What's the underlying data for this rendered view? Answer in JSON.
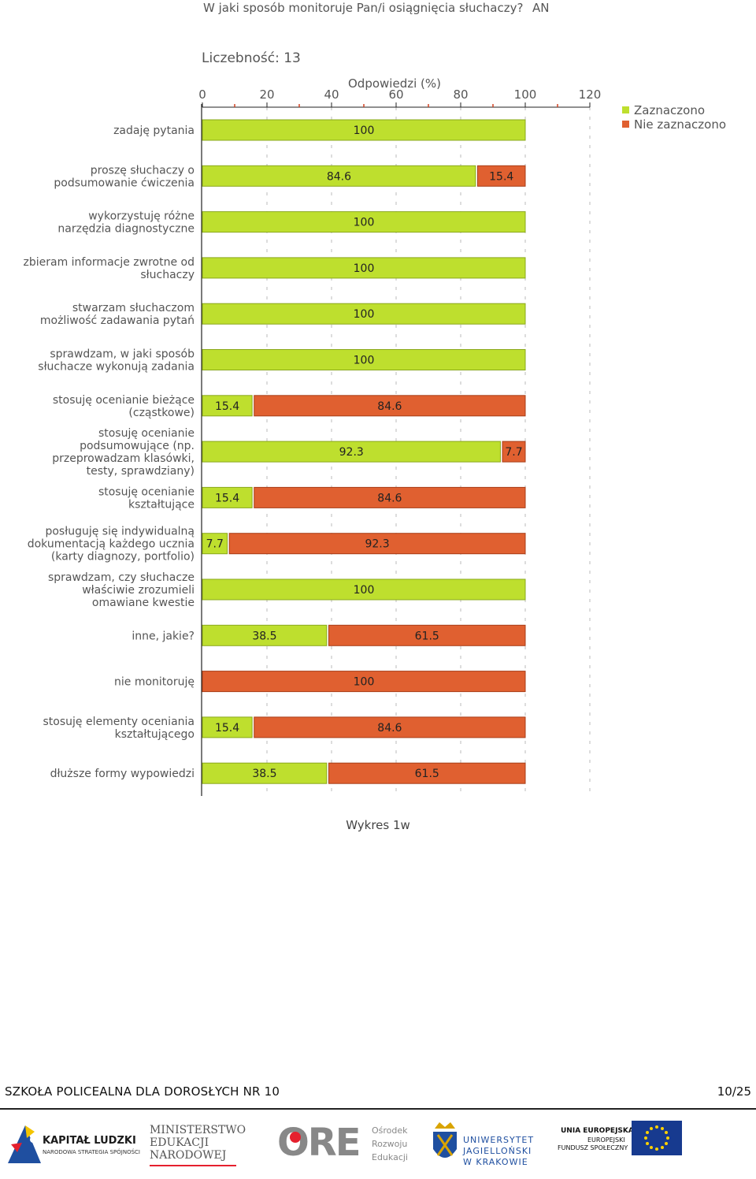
{
  "header": {
    "question": "W jaki sposób monitoruje Pan/i osiągnięcia słuchaczy?",
    "tag": "AN",
    "count_label": "Liczebność: 13"
  },
  "chart_data": {
    "type": "bar",
    "orientation": "horizontal",
    "stacked": true,
    "xlabel": "Odpowiedzi (%)",
    "xlim": [
      0,
      120
    ],
    "xticks": [
      0,
      20,
      40,
      60,
      80,
      100,
      120
    ],
    "grid": true,
    "legend_position": "top-right",
    "categories": [
      "zadaję pytania",
      "proszę słuchaczy o podsumowanie ćwiczenia",
      "wykorzystuję różne narzędzia diagnostyczne",
      "zbieram informacje zwrotne od słuchaczy",
      "stwarzam słuchaczom możliwość zadawania pytań",
      "sprawdzam, w jaki sposób słuchacze wykonują zadania",
      "stosuję ocenianie bieżące (cząstkowe)",
      "stosuję ocenianie podsumowujące (np. przeprowadzam klasówki, testy, sprawdziany)",
      "stosuję ocenianie kształtujące",
      "posługuję się indywidualną dokumentacją każdego ucznia (karty diagnozy, portfolio)",
      "sprawdzam, czy słuchacze właściwie zrozumieli omawiane kwestie",
      "inne, jakie?",
      "nie monitoruję",
      "stosuję elementy oceniania kształtującego",
      "dłuższe formy wypowiedzi"
    ],
    "category_lines": [
      [
        "zadaję pytania"
      ],
      [
        "proszę słuchaczy o",
        "podsumowanie ćwiczenia"
      ],
      [
        "wykorzystuję różne",
        "narzędzia diagnostyczne"
      ],
      [
        "zbieram informacje zwrotne od",
        "słuchaczy"
      ],
      [
        "stwarzam słuchaczom",
        "możliwość zadawania pytań"
      ],
      [
        "sprawdzam, w jaki sposób",
        "słuchacze wykonują zadania"
      ],
      [
        "stosuję ocenianie bieżące",
        "(cząstkowe)"
      ],
      [
        "stosuję ocenianie",
        "podsumowujące (np.",
        "przeprowadzam klasówki,",
        "testy, sprawdziany)"
      ],
      [
        "stosuję ocenianie",
        "kształtujące"
      ],
      [
        "posługuję się indywidualną",
        "dokumentacją każdego ucznia",
        "(karty diagnozy, portfolio)"
      ],
      [
        "sprawdzam, czy słuchacze",
        "właściwie zrozumieli",
        "omawiane kwestie"
      ],
      [
        "inne, jakie?"
      ],
      [
        "nie monitoruję"
      ],
      [
        "stosuję elementy oceniania",
        "kształtującego"
      ],
      [
        "dłuższe formy wypowiedzi"
      ]
    ],
    "series": [
      {
        "name": "Zaznaczono",
        "color": "#bedf2e",
        "values": [
          100,
          84.6,
          100,
          100,
          100,
          100,
          15.4,
          92.3,
          15.4,
          7.7,
          100,
          38.5,
          0,
          15.4,
          38.5
        ]
      },
      {
        "name": "Nie zaznaczono",
        "color": "#e06030",
        "values": [
          0,
          15.4,
          0,
          0,
          0,
          0,
          84.6,
          7.7,
          84.6,
          92.3,
          0,
          61.5,
          100,
          84.6,
          61.5
        ]
      }
    ]
  },
  "caption": "Wykres 1w",
  "footer": {
    "school": "SZKOŁA POLICEALNA DLA DOROSŁYCH NR 10",
    "page": "10/25"
  },
  "logos": {
    "kl_title": "KAPITAŁ LUDZKI",
    "kl_sub": "NARODOWA STRATEGIA SPÓJNOŚCI",
    "men_1": "MINISTERSTWO",
    "men_2": "EDUKACJI",
    "men_3": "NARODOWEJ",
    "ore_mark": "ORE",
    "ore_1": "Ośrodek",
    "ore_2": "Rozwoju",
    "ore_3": "Edukacji",
    "uj_1": "UNIWERSYTET",
    "uj_2": "JAGIELLOŃSKI",
    "uj_3": "W KRAKOWIE",
    "eu_1": "UNIA EUROPEJSKA",
    "eu_2": "EUROPEJSKI",
    "eu_3": "FUNDUSZ SPOŁECZNY"
  }
}
